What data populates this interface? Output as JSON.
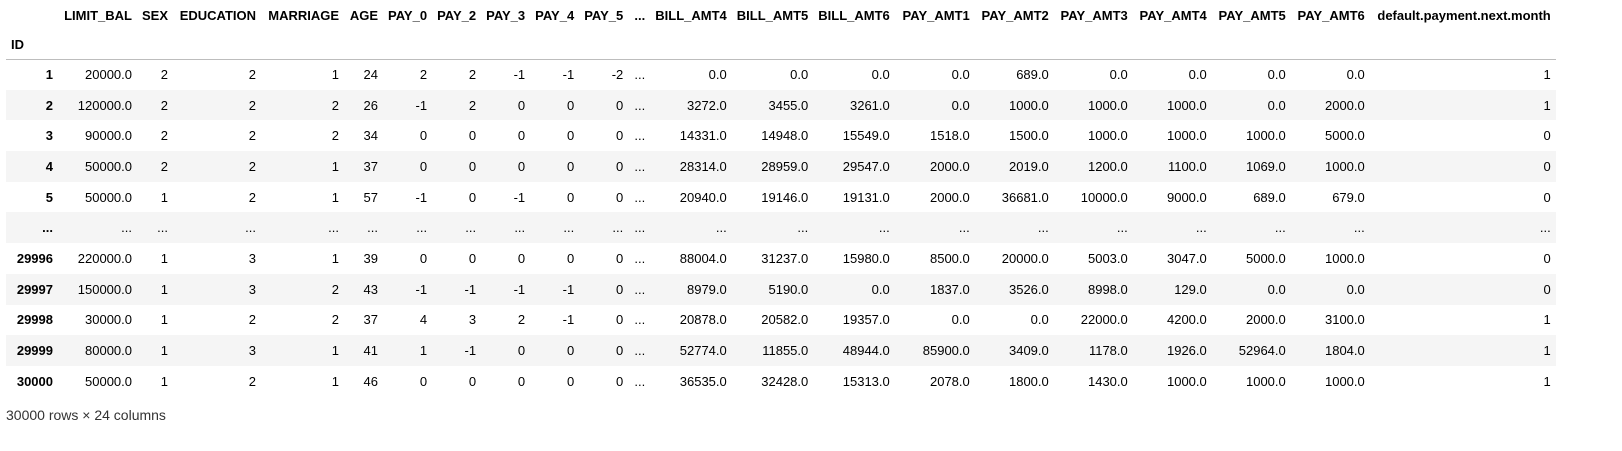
{
  "dataframe": {
    "index_name": "ID",
    "columns": [
      "LIMIT_BAL",
      "SEX",
      "EDUCATION",
      "MARRIAGE",
      "AGE",
      "PAY_0",
      "PAY_2",
      "PAY_3",
      "PAY_4",
      "PAY_5",
      "...",
      "BILL_AMT4",
      "BILL_AMT5",
      "BILL_AMT6",
      "PAY_AMT1",
      "PAY_AMT2",
      "PAY_AMT3",
      "PAY_AMT4",
      "PAY_AMT5",
      "PAY_AMT6",
      "default.payment.next.month"
    ],
    "rows": [
      {
        "index": "1",
        "cells": [
          "20000.0",
          "2",
          "2",
          "1",
          "24",
          "2",
          "2",
          "-1",
          "-1",
          "-2",
          "...",
          "0.0",
          "0.0",
          "0.0",
          "0.0",
          "689.0",
          "0.0",
          "0.0",
          "0.0",
          "0.0",
          "1"
        ]
      },
      {
        "index": "2",
        "cells": [
          "120000.0",
          "2",
          "2",
          "2",
          "26",
          "-1",
          "2",
          "0",
          "0",
          "0",
          "...",
          "3272.0",
          "3455.0",
          "3261.0",
          "0.0",
          "1000.0",
          "1000.0",
          "1000.0",
          "0.0",
          "2000.0",
          "1"
        ]
      },
      {
        "index": "3",
        "cells": [
          "90000.0",
          "2",
          "2",
          "2",
          "34",
          "0",
          "0",
          "0",
          "0",
          "0",
          "...",
          "14331.0",
          "14948.0",
          "15549.0",
          "1518.0",
          "1500.0",
          "1000.0",
          "1000.0",
          "1000.0",
          "5000.0",
          "0"
        ]
      },
      {
        "index": "4",
        "cells": [
          "50000.0",
          "2",
          "2",
          "1",
          "37",
          "0",
          "0",
          "0",
          "0",
          "0",
          "...",
          "28314.0",
          "28959.0",
          "29547.0",
          "2000.0",
          "2019.0",
          "1200.0",
          "1100.0",
          "1069.0",
          "1000.0",
          "0"
        ]
      },
      {
        "index": "5",
        "cells": [
          "50000.0",
          "1",
          "2",
          "1",
          "57",
          "-1",
          "0",
          "-1",
          "0",
          "0",
          "...",
          "20940.0",
          "19146.0",
          "19131.0",
          "2000.0",
          "36681.0",
          "10000.0",
          "9000.0",
          "689.0",
          "679.0",
          "0"
        ]
      },
      {
        "index": "...",
        "cells": [
          "...",
          "...",
          "...",
          "...",
          "...",
          "...",
          "...",
          "...",
          "...",
          "...",
          "...",
          "...",
          "...",
          "...",
          "...",
          "...",
          "...",
          "...",
          "...",
          "...",
          "..."
        ]
      },
      {
        "index": "29996",
        "cells": [
          "220000.0",
          "1",
          "3",
          "1",
          "39",
          "0",
          "0",
          "0",
          "0",
          "0",
          "...",
          "88004.0",
          "31237.0",
          "15980.0",
          "8500.0",
          "20000.0",
          "5003.0",
          "3047.0",
          "5000.0",
          "1000.0",
          "0"
        ]
      },
      {
        "index": "29997",
        "cells": [
          "150000.0",
          "1",
          "3",
          "2",
          "43",
          "-1",
          "-1",
          "-1",
          "-1",
          "0",
          "...",
          "8979.0",
          "5190.0",
          "0.0",
          "1837.0",
          "3526.0",
          "8998.0",
          "129.0",
          "0.0",
          "0.0",
          "0"
        ]
      },
      {
        "index": "29998",
        "cells": [
          "30000.0",
          "1",
          "2",
          "2",
          "37",
          "4",
          "3",
          "2",
          "-1",
          "0",
          "...",
          "20878.0",
          "20582.0",
          "19357.0",
          "0.0",
          "0.0",
          "22000.0",
          "4200.0",
          "2000.0",
          "3100.0",
          "1"
        ]
      },
      {
        "index": "29999",
        "cells": [
          "80000.0",
          "1",
          "3",
          "1",
          "41",
          "1",
          "-1",
          "0",
          "0",
          "0",
          "...",
          "52774.0",
          "11855.0",
          "48944.0",
          "85900.0",
          "3409.0",
          "1178.0",
          "1926.0",
          "52964.0",
          "1804.0",
          "1"
        ]
      },
      {
        "index": "30000",
        "cells": [
          "50000.0",
          "1",
          "2",
          "1",
          "46",
          "0",
          "0",
          "0",
          "0",
          "0",
          "...",
          "36535.0",
          "32428.0",
          "15313.0",
          "2078.0",
          "1800.0",
          "1430.0",
          "1000.0",
          "1000.0",
          "1000.0",
          "1"
        ]
      }
    ],
    "shape_caption": "30000 rows × 24 columns"
  }
}
